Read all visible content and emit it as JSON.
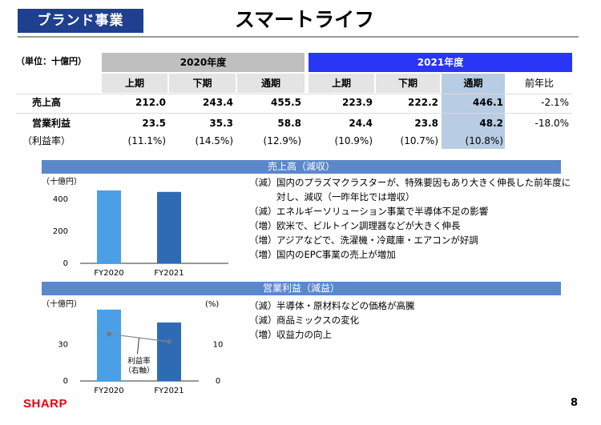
{
  "header": {
    "section_tag": "ブランド事業",
    "title": "スマートライフ"
  },
  "table": {
    "unit": "（単位：十億円）",
    "years": [
      "2020年度",
      "2021年度"
    ],
    "cols": [
      "上期",
      "下期",
      "通期",
      "上期",
      "下期",
      "通期",
      "前年比"
    ],
    "rows": [
      {
        "label": "売上高",
        "values": [
          "212.0",
          "243.4",
          "455.5",
          "223.9",
          "222.2",
          "446.1",
          "-2.1%"
        ]
      },
      {
        "label": "営業利益",
        "values": [
          "23.5",
          "35.3",
          "58.8",
          "24.4",
          "23.8",
          "48.2",
          "-18.0%"
        ]
      },
      {
        "label": "（利益率）",
        "values": [
          "(11.1%)",
          "(14.5%)",
          "(12.9%)",
          "(10.9%)",
          "(10.7%)",
          "(10.8%)",
          ""
        ]
      }
    ]
  },
  "sales_section": {
    "title": "売上高（減収）",
    "notes": [
      {
        "tag": "（減）",
        "text": "国内のプラズマクラスターが、特殊要因もあり大きく伸長した前年度に"
      },
      {
        "tag": "",
        "text": "対し、減収（一昨年比では増収）"
      },
      {
        "tag": "（減）",
        "text": "エネルギーソリューション事業で半導体不足の影響"
      },
      {
        "tag": "（増）",
        "text": "欧米で、ビルトイン調理器などが大きく伸長"
      },
      {
        "tag": "（増）",
        "text": "アジアなどで、洗濯機・冷蔵庫・エアコンが好調"
      },
      {
        "tag": "（増）",
        "text": "国内のEPC事業の売上が増加"
      }
    ]
  },
  "profit_section": {
    "title": "営業利益（減益）",
    "notes": [
      {
        "tag": "（減）",
        "text": "半導体・原材料などの価格が高騰"
      },
      {
        "tag": "（減）",
        "text": "商品ミックスの変化"
      },
      {
        "tag": "（増）",
        "text": "収益力の向上"
      }
    ]
  },
  "chart_data": [
    {
      "type": "bar",
      "categories": [
        "FY2020",
        "FY2021"
      ],
      "values": [
        455.5,
        446.1
      ],
      "ylabel": "（十億円）",
      "ylim": [
        0,
        500
      ],
      "yticks": [
        "0",
        "200",
        "400"
      ],
      "colors": [
        "#4a9fe6",
        "#2e6bb5"
      ]
    },
    {
      "type": "bar",
      "categories": [
        "FY2020",
        "FY2021"
      ],
      "values": [
        58.8,
        48.2
      ],
      "ylabel": "（十億円）",
      "ylim": [
        0,
        60
      ],
      "yticks": [
        "0",
        "30"
      ],
      "colors": [
        "#4a9fe6",
        "#2e6bb5"
      ],
      "secondary_axis": {
        "ylabel": "(%)",
        "ylim": [
          0,
          20
        ],
        "yticks": [
          "0",
          "10"
        ],
        "series_name": "利益率\n（右軸）",
        "values": [
          12.9,
          10.8
        ]
      }
    }
  ],
  "footer": {
    "logo": "SHARP",
    "page": "8"
  }
}
